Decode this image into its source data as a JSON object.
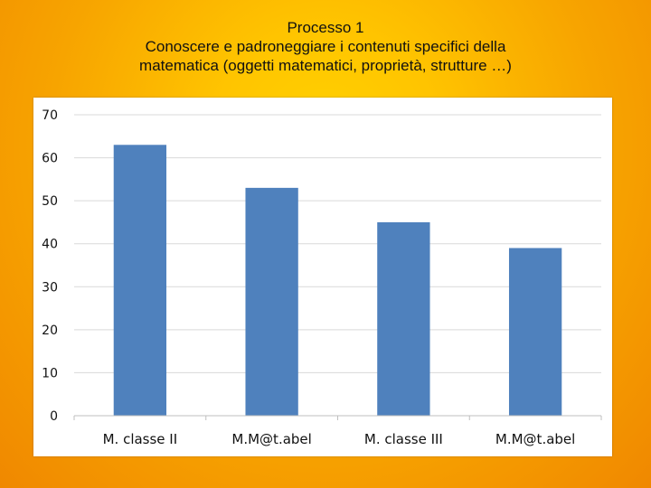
{
  "slide": {
    "title_lines": [
      "Processo 1",
      "Conoscere e padroneggiare i contenuti specifici della",
      "matematica  (oggetti matematici, proprietà, strutture …)"
    ]
  },
  "colors": {
    "bar": "#4f81bd",
    "gridline": "#d9d9d9",
    "axis": "#bfbfbf",
    "text": "#111111"
  },
  "chart_data": {
    "type": "bar",
    "categories": [
      "M. classe II",
      "M.M@t.abel",
      "M. classe III",
      "M.M@t.abel"
    ],
    "values": [
      63,
      53,
      45,
      39
    ],
    "ylim": [
      0,
      70
    ],
    "yticks": [
      0,
      10,
      20,
      30,
      40,
      50,
      60,
      70
    ],
    "grid": true,
    "legend": "none"
  }
}
